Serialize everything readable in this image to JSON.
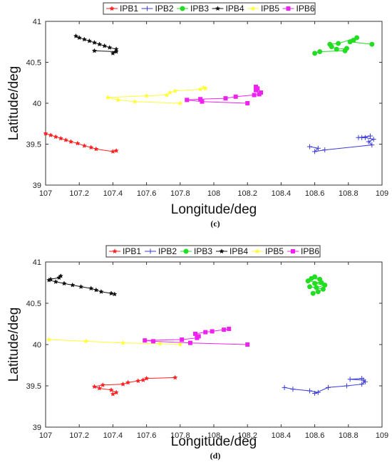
{
  "chart_data": [
    {
      "type": "line",
      "panel_label": "(c)",
      "xlabel": "Longitude/deg",
      "ylabel": "Latitude/deg",
      "xlim": [
        107,
        109
      ],
      "ylim": [
        39,
        41
      ],
      "xticks": [
        "107",
        "107.2",
        "107.4",
        "107.6",
        "107.8",
        "108",
        "108.2",
        "108.4",
        "108.6",
        "108.8",
        "109"
      ],
      "yticks": [
        "39",
        "39.5",
        "40",
        "40.5",
        "41"
      ],
      "legend_position": "top",
      "series": [
        {
          "name": "IPB1",
          "color": "#ff2020",
          "marker": "star",
          "x": [
            107.0,
            107.03,
            107.06,
            107.09,
            107.12,
            107.15,
            107.19,
            107.23,
            107.27,
            107.3,
            107.4,
            107.42
          ],
          "y": [
            39.63,
            39.61,
            39.59,
            39.57,
            39.55,
            39.53,
            39.51,
            39.48,
            39.46,
            39.44,
            39.41,
            39.42
          ]
        },
        {
          "name": "IPB2",
          "color": "#3b3bdc",
          "marker": "plus",
          "x": [
            108.57,
            108.62,
            108.6,
            108.66,
            108.94,
            108.92,
            108.95,
            108.9,
            108.88,
            108.93,
            108.86
          ],
          "y": [
            39.47,
            39.45,
            39.41,
            39.43,
            39.49,
            39.53,
            39.56,
            39.58,
            39.58,
            39.6,
            39.58
          ]
        },
        {
          "name": "IPB3",
          "color": "#22dd22",
          "marker": "circle",
          "x": [
            108.6,
            108.63,
            108.78,
            108.79,
            108.73,
            108.7,
            108.69,
            108.74,
            108.85,
            108.83,
            108.81,
            108.94
          ],
          "y": [
            40.61,
            40.63,
            40.64,
            40.67,
            40.66,
            40.69,
            40.72,
            40.73,
            40.8,
            40.77,
            40.75,
            40.72
          ]
        },
        {
          "name": "IPB4",
          "color": "#111111",
          "marker": "star",
          "x": [
            107.18,
            107.2,
            107.23,
            107.26,
            107.29,
            107.32,
            107.35,
            107.38,
            107.42,
            107.4,
            107.42,
            107.29
          ],
          "y": [
            40.82,
            40.8,
            40.78,
            40.76,
            40.74,
            40.72,
            40.7,
            40.68,
            40.66,
            40.61,
            40.63,
            40.64
          ]
        },
        {
          "name": "IPB5",
          "color": "#ffff33",
          "marker": "star",
          "x": [
            107.8,
            107.53,
            107.43,
            107.37,
            107.6,
            107.72,
            107.74,
            107.77,
            107.92,
            107.95,
            107.94
          ],
          "y": [
            40.0,
            40.02,
            40.04,
            40.07,
            40.09,
            40.1,
            40.13,
            40.15,
            40.17,
            40.18,
            40.19
          ]
        },
        {
          "name": "IPB6",
          "color": "#ee22ee",
          "marker": "square",
          "x": [
            108.2,
            107.93,
            107.84,
            107.92,
            108.07,
            108.13,
            108.24,
            108.27,
            108.28,
            108.25,
            108.26,
            108.25
          ],
          "y": [
            40.0,
            40.02,
            40.04,
            40.05,
            40.06,
            40.08,
            40.1,
            40.11,
            40.13,
            40.16,
            40.18,
            40.2
          ]
        }
      ]
    },
    {
      "type": "line",
      "panel_label": "(d)",
      "xlabel": "Longitude/deg",
      "ylabel": "Latitude/deg",
      "xlim": [
        107,
        109
      ],
      "ylim": [
        39,
        41
      ],
      "xticks": [
        "107",
        "107.2",
        "107.4",
        "107.6",
        "107.8",
        "108",
        "108.2",
        "108.4",
        "108.6",
        "108.8",
        "109"
      ],
      "yticks": [
        "39",
        "39.5",
        "40",
        "40.5",
        "41"
      ],
      "legend_position": "top",
      "series": [
        {
          "name": "IPB1",
          "color": "#ff2020",
          "marker": "star",
          "x": [
            107.77,
            107.6,
            107.58,
            107.55,
            107.49,
            107.46,
            107.34,
            107.29,
            107.32,
            107.39,
            107.42,
            107.4
          ],
          "y": [
            39.6,
            39.59,
            39.57,
            39.56,
            39.54,
            39.52,
            39.51,
            39.49,
            39.47,
            39.45,
            39.42,
            39.4
          ]
        },
        {
          "name": "IPB2",
          "color": "#3b3bdc",
          "marker": "plus",
          "x": [
            108.42,
            108.47,
            108.57,
            108.62,
            108.6,
            108.68,
            108.79,
            108.88,
            108.9,
            108.89,
            108.81,
            108.88
          ],
          "y": [
            39.48,
            39.46,
            39.44,
            39.42,
            39.41,
            39.48,
            39.5,
            39.52,
            39.55,
            39.57,
            39.58,
            39.59
          ]
        },
        {
          "name": "IPB3",
          "color": "#22dd22",
          "marker": "circle",
          "x": [
            108.59,
            108.62,
            108.65,
            108.57,
            108.61,
            108.66,
            108.6,
            108.64,
            108.56,
            108.58,
            108.63,
            108.6
          ],
          "y": [
            40.62,
            40.64,
            40.67,
            40.7,
            40.69,
            40.72,
            40.74,
            40.75,
            40.77,
            40.8,
            40.79,
            40.82
          ]
        },
        {
          "name": "IPB4",
          "color": "#111111",
          "marker": "star",
          "x": [
            107.09,
            107.08,
            107.03,
            107.02,
            107.06,
            107.11,
            107.16,
            107.21,
            107.27,
            107.3,
            107.33,
            107.39,
            107.41
          ],
          "y": [
            40.83,
            40.81,
            40.79,
            40.78,
            40.76,
            40.74,
            40.72,
            40.7,
            40.68,
            40.66,
            40.64,
            40.62,
            40.61
          ]
        },
        {
          "name": "IPB5",
          "color": "#ffff33",
          "marker": "star",
          "x": [
            107.02,
            107.24,
            107.46,
            107.68,
            107.8
          ],
          "y": [
            40.06,
            40.04,
            40.02,
            40.01,
            40.0
          ]
        },
        {
          "name": "IPB6",
          "color": "#ee22ee",
          "marker": "square",
          "x": [
            108.2,
            107.86,
            107.64,
            107.59,
            107.81,
            107.9,
            107.91,
            107.89,
            107.95,
            107.99,
            108.06,
            108.09
          ],
          "y": [
            40.0,
            40.02,
            40.04,
            40.05,
            40.06,
            40.08,
            40.1,
            40.13,
            40.15,
            40.16,
            40.18,
            40.19
          ]
        }
      ]
    }
  ]
}
